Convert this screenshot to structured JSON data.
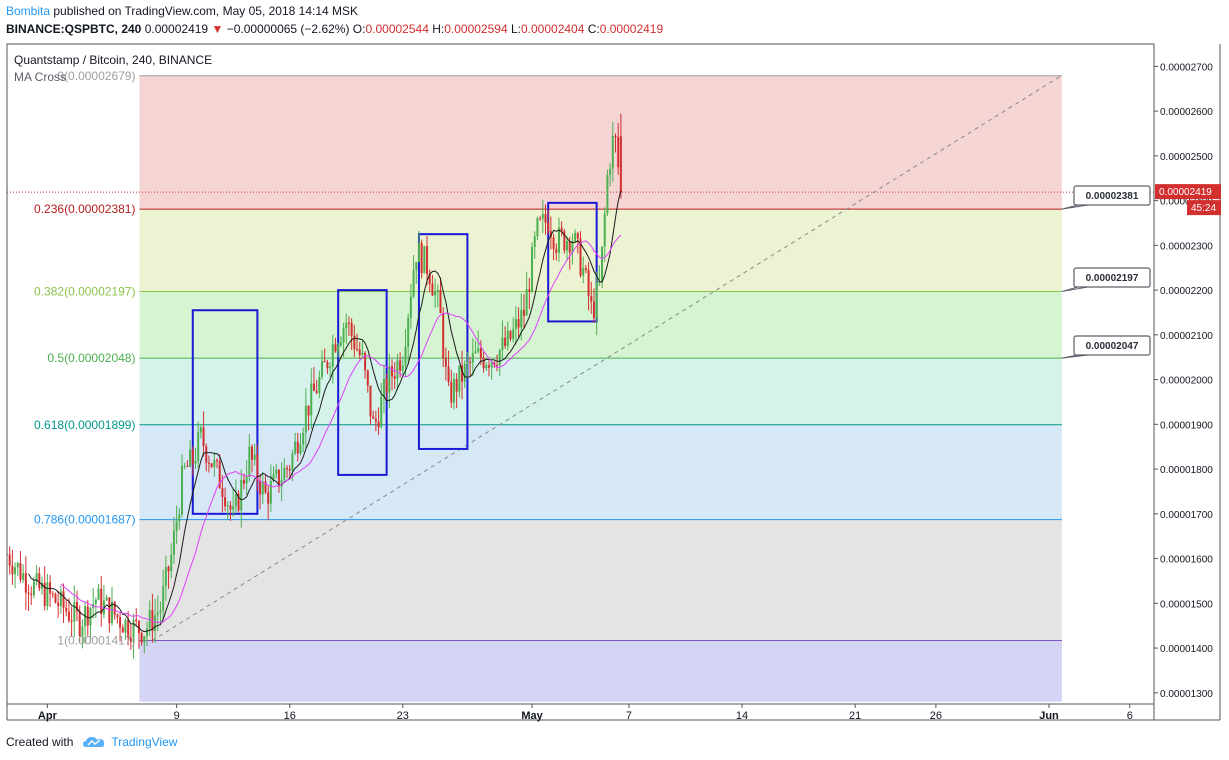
{
  "header": {
    "author": "Bombita",
    "published_text": "published on TradingView.com, May 05, 2018 14:14 MSK",
    "symbol": "BINANCE:QSPBTC, 240",
    "last": "0.00002419",
    "change": "−0.00000065 (−2.62%)",
    "o_label": "O:",
    "o_value": "0.00002544",
    "h_label": "H:",
    "h_value": "0.00002594",
    "l_label": "L:",
    "l_value": "0.00002404",
    "c_label": "C:",
    "c_value": "0.00002419"
  },
  "footer": {
    "created_with": "Created with",
    "brand": "TradingView"
  },
  "chart_data": {
    "type": "candlestick",
    "title": "Quantstamp / Bitcoin, 240, BINANCE",
    "indicator": "MA Cross",
    "y_ticks": [
      "0.00001300",
      "0.00001400",
      "0.00001500",
      "0.00001600",
      "0.00001700",
      "0.00001800",
      "0.00001900",
      "0.00002000",
      "0.00002100",
      "0.00002200",
      "0.00002300",
      "0.00002400",
      "0.00002500",
      "0.00002600",
      "0.00002700"
    ],
    "y_tick_values": [
      1.3e-05,
      1.4e-05,
      1.5e-05,
      1.6e-05,
      1.7e-05,
      1.8e-05,
      1.9e-05,
      2e-05,
      2.1e-05,
      2.2e-05,
      2.3e-05,
      2.4e-05,
      2.5e-05,
      2.6e-05,
      2.7e-05
    ],
    "ylim": [
      1.275e-05,
      2.75e-05
    ],
    "x_ticks": [
      "Apr",
      "9",
      "16",
      "23",
      "May",
      "7",
      "14",
      "21",
      "26",
      "Jun",
      "6"
    ],
    "x_tick_days": [
      0,
      8,
      15,
      22,
      30,
      36,
      43,
      50,
      55,
      62,
      67
    ],
    "xlim": [
      -2.5,
      68.5
    ],
    "fib_levels": [
      {
        "ratio": 0,
        "label": "0(0.00002679)",
        "price": 2.679e-05,
        "line": "#9e9e9e",
        "fill": "#f5d4d4",
        "text": "#9e9e9e"
      },
      {
        "ratio": 0.236,
        "label": "0.236(0.00002381)",
        "price": 2.381e-05,
        "line": "#b71c1c",
        "fill": "#ebf3d2",
        "text": "#b71c1c"
      },
      {
        "ratio": 0.382,
        "label": "0.382(0.00002197)",
        "price": 2.197e-05,
        "line": "#8bc34a",
        "fill": "#d6f3d2",
        "text": "#8bc34a"
      },
      {
        "ratio": 0.5,
        "label": "0.5(0.00002048)",
        "price": 2.048e-05,
        "line": "#4caf50",
        "fill": "#d5f3ea",
        "text": "#4caf50"
      },
      {
        "ratio": 0.618,
        "label": "0.618(0.00001899)",
        "price": 1.899e-05,
        "line": "#009688",
        "fill": "#d6e8f5",
        "text": "#009688"
      },
      {
        "ratio": 0.786,
        "label": "0.786(0.00001687)",
        "price": 1.687e-05,
        "line": "#2196f3",
        "fill": "#e4e4e4",
        "text": "#2196f3"
      },
      {
        "ratio": 1,
        "label": "1(0.00001417)",
        "price": 1.417e-05,
        "line": "#7e57c2",
        "fill": "#d4d4f5",
        "text": "#9e9e9e"
      }
    ],
    "fib_x_range_days": [
      5.7,
      62.8
    ],
    "fib_bottom_price": 1.28e-05,
    "callouts": [
      "0.00002381",
      "0.00002197",
      "0.00002047"
    ],
    "current_price": "0.00002419",
    "current_price_value": 2.419e-05,
    "countdown": "45:24",
    "trendline": {
      "from": [
        6.5,
        1.417e-05
      ],
      "to": [
        62.8,
        2.68e-05
      ]
    },
    "boxes": [
      {
        "x0": 9.0,
        "x1": 13.0,
        "y0": 1.7e-05,
        "y1": 2.155e-05
      },
      {
        "x0": 18.0,
        "x1": 21.0,
        "y0": 1.787e-05,
        "y1": 2.2e-05
      },
      {
        "x0": 23.0,
        "x1": 26.0,
        "y0": 1.845e-05,
        "y1": 2.325e-05
      },
      {
        "x0": 31.0,
        "x1": 34.0,
        "y0": 2.13e-05,
        "y1": 2.395e-05
      }
    ],
    "colors": {
      "up": "#4caf50",
      "down": "#d32f2f",
      "ma_fast": "#1b1b1b",
      "ma_slow": "#e040fb",
      "box": "#1a1ad6"
    },
    "candles_per_day": 6,
    "candle_close_anchors": [
      [
        -2.5,
        1.61e-05
      ],
      [
        -1,
        1.54e-05
      ],
      [
        0,
        1.52e-05
      ],
      [
        1,
        1.49e-05
      ],
      [
        2,
        1.46e-05
      ],
      [
        3,
        1.51e-05
      ],
      [
        4,
        1.48e-05
      ],
      [
        5,
        1.45e-05
      ],
      [
        6,
        1.44e-05
      ],
      [
        7,
        1.49e-05
      ],
      [
        7.7,
        1.61e-05
      ],
      [
        8.4,
        1.79e-05
      ],
      [
        9,
        1.82e-05
      ],
      [
        9.5,
        1.87e-05
      ],
      [
        10,
        1.83e-05
      ],
      [
        11,
        1.75e-05
      ],
      [
        11.5,
        1.69e-05
      ],
      [
        12.5,
        1.83e-05
      ],
      [
        13.5,
        1.74e-05
      ],
      [
        15,
        1.81e-05
      ],
      [
        16,
        1.93e-05
      ],
      [
        17,
        2.01e-05
      ],
      [
        17.8,
        2.09e-05
      ],
      [
        18.5,
        2.13e-05
      ],
      [
        19.5,
        2.04e-05
      ],
      [
        20.2,
        1.89e-05
      ],
      [
        21,
        1.99e-05
      ],
      [
        22,
        2.06e-05
      ],
      [
        22.8,
        2.29e-05
      ],
      [
        23.6,
        2.25e-05
      ],
      [
        24.3,
        2.15e-05
      ],
      [
        24.8,
        1.96e-05
      ],
      [
        25.5,
        2e-05
      ],
      [
        26.5,
        2.05e-05
      ],
      [
        27.5,
        2.05e-05
      ],
      [
        28.5,
        2.08e-05
      ],
      [
        29.5,
        2.15e-05
      ],
      [
        30.3,
        2.33e-05
      ],
      [
        31,
        2.36e-05
      ],
      [
        31.5,
        2.31e-05
      ],
      [
        32.5,
        2.32e-05
      ],
      [
        33.2,
        2.24e-05
      ],
      [
        33.7,
        2.15e-05
      ],
      [
        34.2,
        2.21e-05
      ],
      [
        34.7,
        2.47e-05
      ],
      [
        35.1,
        2.55e-05
      ],
      [
        35.5,
        2.42e-05
      ]
    ]
  }
}
